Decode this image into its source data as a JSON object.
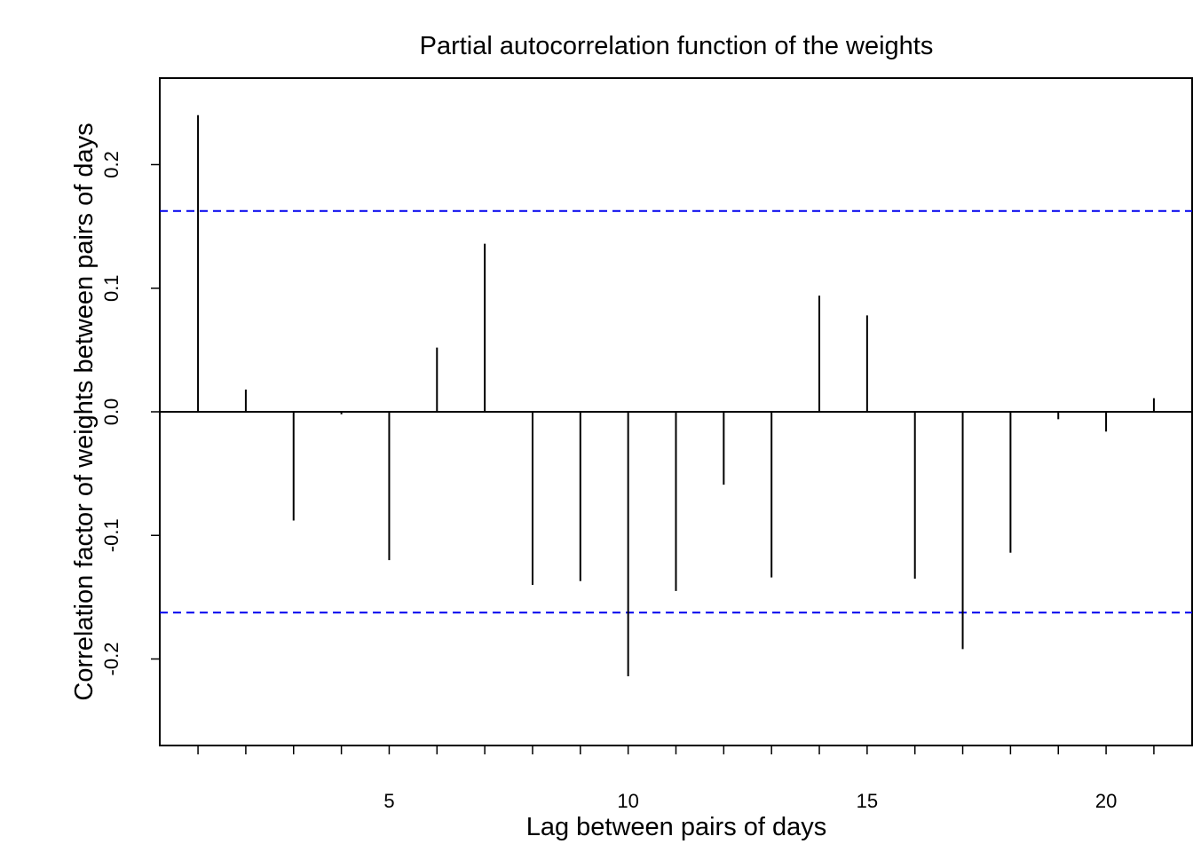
{
  "chart_data": {
    "type": "bar",
    "title": "Partial autocorrelation function of the weights",
    "xlabel": "Lag between pairs of days",
    "ylabel": "Correlation factor of weights between pairs of days",
    "x": [
      1,
      2,
      3,
      4,
      5,
      6,
      7,
      8,
      9,
      10,
      11,
      12,
      13,
      14,
      15,
      16,
      17,
      18,
      19,
      20,
      21
    ],
    "values": [
      0.24,
      0.018,
      -0.088,
      -0.002,
      -0.12,
      0.052,
      0.136,
      -0.14,
      -0.137,
      -0.214,
      -0.145,
      -0.059,
      -0.134,
      0.094,
      0.078,
      -0.135,
      -0.192,
      -0.114,
      -0.006,
      -0.016,
      0.011
    ],
    "xlim": [
      0.2,
      21.8
    ],
    "ylim": [
      -0.27,
      0.27
    ],
    "x_ticks": [
      1,
      2,
      3,
      4,
      5,
      6,
      7,
      8,
      9,
      10,
      11,
      12,
      13,
      14,
      15,
      16,
      17,
      18,
      19,
      20,
      21
    ],
    "x_tick_labels": [
      {
        "value": 5,
        "label": "5"
      },
      {
        "value": 10,
        "label": "10"
      },
      {
        "value": 15,
        "label": "15"
      },
      {
        "value": 20,
        "label": "20"
      }
    ],
    "y_ticks": [
      {
        "value": -0.2,
        "label": "-0.2"
      },
      {
        "value": -0.1,
        "label": "-0.1"
      },
      {
        "value": 0.0,
        "label": "0.0"
      },
      {
        "value": 0.1,
        "label": "0.1"
      },
      {
        "value": 0.2,
        "label": "0.2"
      }
    ],
    "confidence_bounds": [
      0.1625,
      -0.1625
    ],
    "confidence_color": "#0000ee",
    "bar_color": "#000000",
    "grid": false
  }
}
